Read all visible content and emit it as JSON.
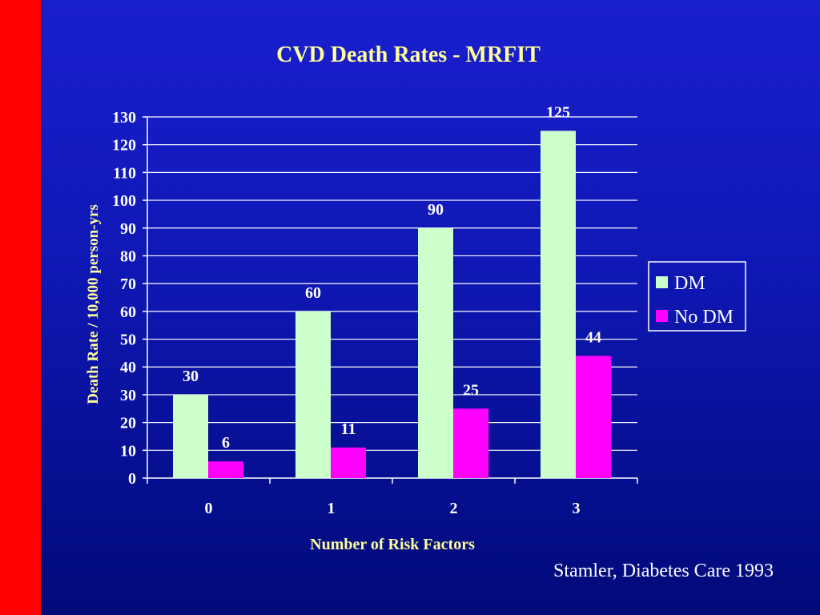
{
  "slide": {
    "accent_color": "#ff0000",
    "background_color": "#0f17b3",
    "citation": "Stamler, Diabetes Care 1993"
  },
  "chart_data": {
    "type": "bar",
    "title": "CVD Death Rates - MRFIT",
    "xlabel": "Number of Risk Factors",
    "ylabel": "Death Rate / 10,000 person-yrs",
    "categories": [
      "0",
      "1",
      "2",
      "3"
    ],
    "series": [
      {
        "name": "DM",
        "values": [
          30,
          60,
          90,
          125
        ],
        "color": "#ccffcc"
      },
      {
        "name": "No DM",
        "values": [
          6,
          11,
          25,
          44
        ],
        "color": "#ff00ff"
      }
    ],
    "ylim": [
      0,
      130
    ],
    "yticks": [
      0,
      10,
      20,
      30,
      40,
      50,
      60,
      70,
      80,
      90,
      100,
      110,
      120,
      130
    ],
    "grid": true,
    "legend_position": "right",
    "text_color": "#ffffff",
    "title_color": "#ffff99"
  }
}
